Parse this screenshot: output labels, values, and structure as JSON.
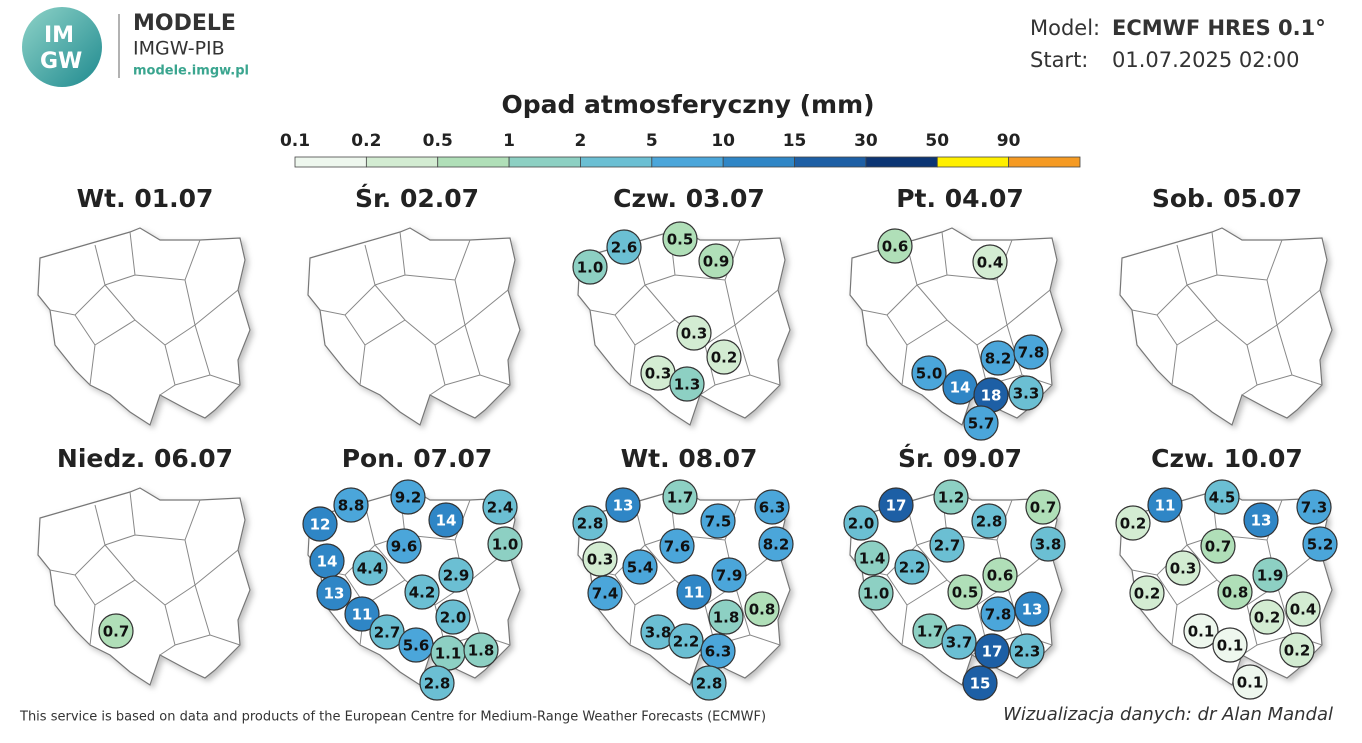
{
  "header": {
    "logo": [
      "IM",
      "GW"
    ],
    "brand": "MODELE",
    "org": "IMGW-PIB",
    "url": "modele.imgw.pl",
    "model_label": "Model:",
    "model": "ECMWF HRES 0.1°",
    "start_label": "Start:",
    "start": "01.07.2025 02:00"
  },
  "title": "Opad atmosferyczny (mm)",
  "legend": {
    "labels": [
      "0.1",
      "0.2",
      "0.5",
      "1",
      "2",
      "5",
      "10",
      "15",
      "30",
      "50",
      "90"
    ],
    "colors": [
      "#eef7ee",
      "#d3ecd2",
      "#b0dfb8",
      "#8dd0c3",
      "#6bbfd3",
      "#4ba6da",
      "#2f86c6",
      "#1d5fa5",
      "#0c3574",
      "#fff000",
      "#f59a23",
      "#e3201b"
    ]
  },
  "panels": [
    {
      "title": "Wt. 01.07",
      "values": []
    },
    {
      "title": "Śr. 02.07",
      "values": []
    },
    {
      "title": "Czw. 03.07",
      "values": [
        "1.0",
        "2.6",
        "0.5",
        "0.9",
        "0.3",
        "0.2",
        "0.3",
        "1.3"
      ]
    },
    {
      "title": "Pt. 04.07",
      "values": [
        "0.6",
        "0.4",
        "8.2",
        "7.8",
        "5.0",
        "14",
        "18",
        "3.3",
        "5.7"
      ]
    },
    {
      "title": "Sob. 05.07",
      "values": []
    },
    {
      "title": "Niedz. 06.07",
      "values": [
        "0.7"
      ]
    },
    {
      "title": "Pon. 07.07",
      "values": [
        "8.8",
        "9.2",
        "12",
        "14",
        "2.4",
        "1.0",
        "14",
        "9.6",
        "4.4",
        "2.9",
        "13",
        "4.2",
        "11",
        "2.0",
        "2.7",
        "5.6",
        "1.1",
        "1.8",
        "2.8"
      ]
    },
    {
      "title": "Wt. 08.07",
      "values": [
        "13",
        "1.7",
        "6.3",
        "2.8",
        "7.5",
        "7.6",
        "8.2",
        "0.3",
        "5.4",
        "7.9",
        "11",
        "7.4",
        "1.8",
        "0.8",
        "3.8",
        "2.2",
        "6.3",
        "2.8"
      ]
    },
    {
      "title": "Śr. 09.07",
      "values": [
        "17",
        "1.2",
        "0.7",
        "2.0",
        "2.8",
        "2.7",
        "3.8",
        "1.4",
        "2.2",
        "0.6",
        "1.0",
        "0.5",
        "7.8",
        "13",
        "1.7",
        "3.7",
        "17",
        "2.3",
        "15"
      ]
    },
    {
      "title": "Czw. 10.07",
      "values": [
        "11",
        "4.5",
        "7.3",
        "0.2",
        "13",
        "0.7",
        "5.2",
        "0.3",
        "1.9",
        "0.2",
        "0.8",
        "0.4",
        "0.2",
        "0.1",
        "0.1",
        "0.2",
        "0.1"
      ]
    }
  ],
  "footer": {
    "source": "This service is based on data and products of the European Centre for Medium-Range Weather Forecasts (ECMWF)",
    "credit": "Wizualizacja danych: dr Alan Mandal"
  }
}
